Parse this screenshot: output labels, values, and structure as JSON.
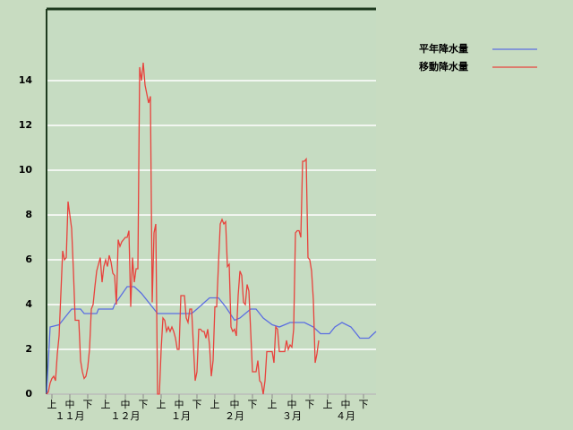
{
  "chart_data": {
    "type": "line",
    "xlim": [
      0,
      184
    ],
    "ylim": [
      0,
      17.2
    ],
    "yticks": [
      0,
      2,
      4,
      6,
      8,
      10,
      12,
      14
    ],
    "grid": true,
    "legend": "top-right",
    "xticks": [
      {
        "value": 3,
        "label": "上"
      },
      {
        "value": 13,
        "label": "中"
      },
      {
        "value": 23,
        "label": "下"
      },
      {
        "value": 33,
        "label": "上"
      },
      {
        "value": 44,
        "label": "中"
      },
      {
        "value": 54,
        "label": "下"
      },
      {
        "value": 64,
        "label": "上"
      },
      {
        "value": 74,
        "label": "中"
      },
      {
        "value": 84,
        "label": "下"
      },
      {
        "value": 94,
        "label": "上"
      },
      {
        "value": 105,
        "label": "中"
      },
      {
        "value": 115,
        "label": "下"
      },
      {
        "value": 126,
        "label": "上"
      },
      {
        "value": 137,
        "label": "中"
      },
      {
        "value": 147,
        "label": "下"
      },
      {
        "value": 157,
        "label": "上"
      },
      {
        "value": 167,
        "label": "中"
      },
      {
        "value": 177,
        "label": "下"
      }
    ],
    "month_labels": [
      {
        "value": 13,
        "label": "１１月"
      },
      {
        "value": 44,
        "label": "１２月"
      },
      {
        "value": 75,
        "label": "１月"
      },
      {
        "value": 105,
        "label": "２月"
      },
      {
        "value": 137,
        "label": "３月"
      },
      {
        "value": 167,
        "label": "４月"
      }
    ],
    "series": [
      {
        "name": "平年降水量",
        "color": "#5b6ee1",
        "x": [
          0,
          2,
          7,
          10,
          14,
          19,
          21,
          28,
          29,
          37,
          38,
          45,
          49,
          53,
          58,
          62,
          81,
          84,
          91,
          96,
          100,
          105,
          108,
          114,
          117,
          121,
          126,
          130,
          136,
          144,
          149,
          153,
          158,
          161,
          165,
          170,
          175,
          180,
          184
        ],
        "values": [
          0,
          3.0,
          3.1,
          3.4,
          3.8,
          3.8,
          3.6,
          3.6,
          3.8,
          3.8,
          4.0,
          4.8,
          4.8,
          4.5,
          4.0,
          3.6,
          3.6,
          3.8,
          4.3,
          4.3,
          3.9,
          3.3,
          3.4,
          3.8,
          3.8,
          3.4,
          3.1,
          3.0,
          3.2,
          3.2,
          3.0,
          2.7,
          2.7,
          3.0,
          3.2,
          3.0,
          2.5,
          2.5,
          2.8
        ]
      },
      {
        "name": "移動降水量",
        "color": "#e8423c",
        "x": [
          0,
          1,
          2,
          3,
          4,
          5,
          6,
          7,
          8,
          9,
          10,
          11,
          12,
          13,
          14,
          15,
          16,
          17,
          18,
          19,
          20,
          21,
          22,
          23,
          24,
          25,
          26,
          27,
          28,
          29,
          30,
          31,
          32,
          33,
          34,
          35,
          36,
          37,
          38,
          39,
          40,
          41,
          42,
          43,
          44,
          45,
          46,
          47,
          48,
          49,
          50,
          51,
          52,
          53,
          54,
          55,
          56,
          57,
          58,
          59,
          60,
          61,
          62,
          63,
          64,
          65,
          66,
          67,
          68,
          69,
          70,
          71,
          72,
          73,
          74,
          75,
          76,
          77,
          78,
          79,
          80,
          81,
          82,
          83,
          84,
          85,
          86,
          87,
          88,
          89,
          90,
          91,
          92,
          93,
          94,
          95,
          96,
          97,
          98,
          99,
          100,
          101,
          102,
          103,
          104,
          105,
          106,
          107,
          108,
          109,
          110,
          111,
          112,
          113,
          114,
          115,
          116,
          117,
          118,
          119,
          120,
          121,
          122,
          123,
          124,
          125,
          126,
          127,
          128,
          129,
          130,
          131,
          132,
          133,
          134,
          135,
          136,
          137,
          138,
          139,
          140,
          141,
          142,
          143,
          144,
          145,
          146,
          147,
          148,
          149,
          150,
          151,
          152
        ],
        "values": [
          0,
          0.1,
          0.5,
          0.7,
          0.8,
          0.6,
          1.8,
          2.6,
          4.5,
          6.4,
          6.0,
          6.1,
          8.6,
          8.0,
          7.4,
          5.5,
          3.3,
          3.3,
          3.3,
          1.5,
          1.0,
          0.7,
          0.8,
          1.2,
          2.0,
          3.8,
          4.0,
          4.8,
          5.5,
          5.8,
          6.1,
          5.0,
          5.7,
          6.0,
          5.7,
          6.2,
          5.9,
          5.4,
          5.3,
          4.0,
          6.9,
          6.6,
          6.8,
          6.9,
          7.0,
          7.0,
          7.3,
          3.9,
          6.1,
          5.0,
          5.6,
          5.6,
          14.6,
          14.0,
          14.8,
          13.8,
          13.4,
          13.0,
          13.3,
          4.1,
          7.2,
          7.6,
          0,
          0,
          2.0,
          3.4,
          3.3,
          2.8,
          3.0,
          2.8,
          3.0,
          2.8,
          2.5,
          2.0,
          2.0,
          4.4,
          4.4,
          4.4,
          3.4,
          3.2,
          3.8,
          3.8,
          2.2,
          0.6,
          1.0,
          2.9,
          2.9,
          2.8,
          2.8,
          2.5,
          2.9,
          2.2,
          0.8,
          1.5,
          3.9,
          3.9,
          5.8,
          7.6,
          7.8,
          7.6,
          7.7,
          5.7,
          5.8,
          3.0,
          2.8,
          2.9,
          2.6,
          4.4,
          5.5,
          5.3,
          4.1,
          4.0,
          4.9,
          4.6,
          2.8,
          1.0,
          1.0,
          1.0,
          1.5,
          0.6,
          0.5,
          0,
          0.6,
          1.9,
          1.9,
          1.9,
          1.9,
          1.4,
          3.0,
          2.9,
          1.9,
          1.9,
          1.9,
          1.9,
          2.4,
          2.0,
          2.2,
          2.1,
          2.9,
          7.2,
          7.3,
          7.3,
          7.0,
          10.4,
          10.4,
          10.5,
          6.1,
          6.0,
          5.5,
          4.2,
          1.4,
          1.8,
          2.4
        ]
      }
    ]
  }
}
